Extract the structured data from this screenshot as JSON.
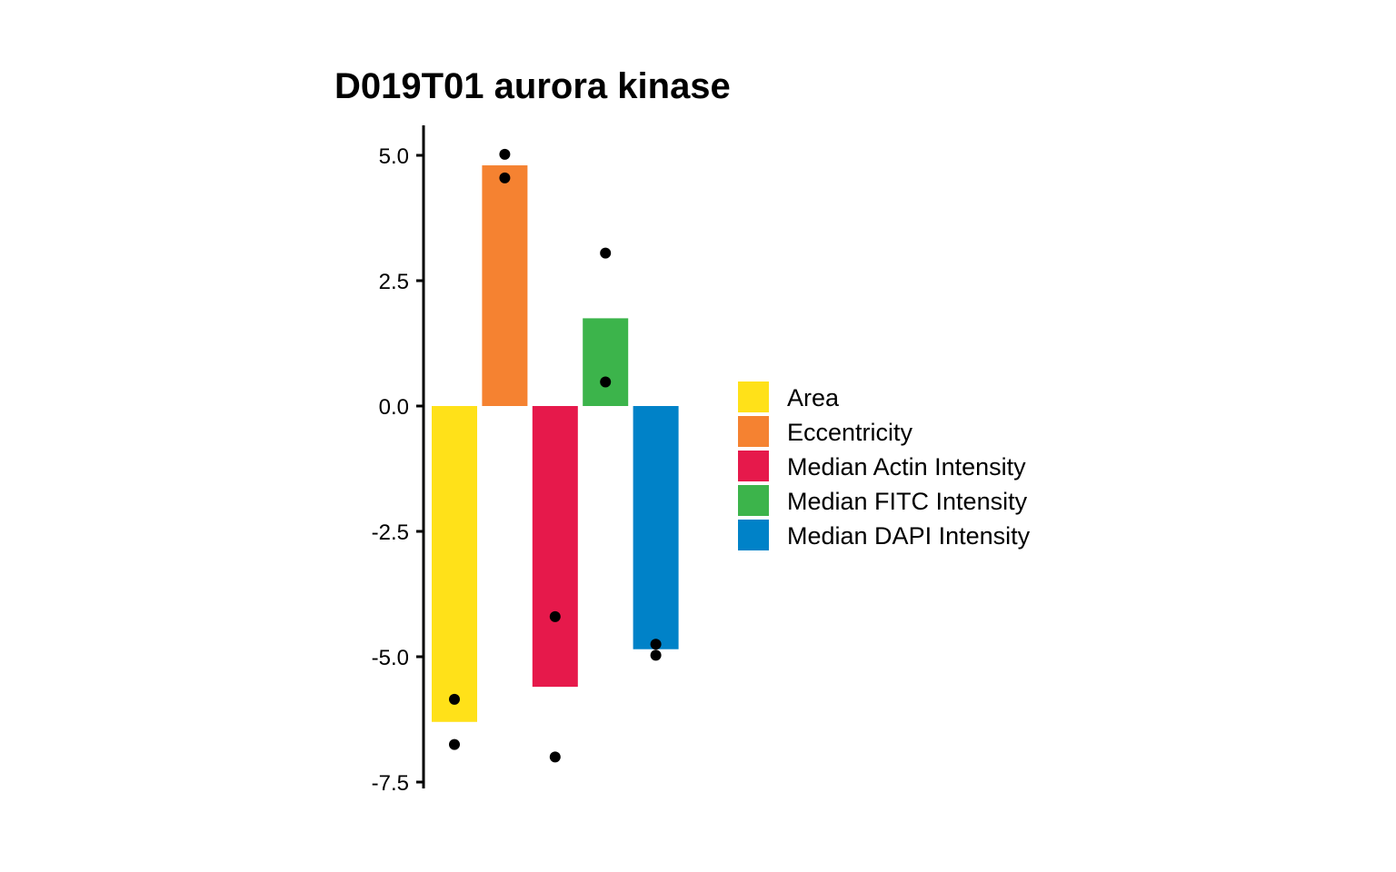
{
  "chart_data": {
    "type": "bar",
    "title": "D019T01 aurora kinase",
    "xlabel": "",
    "ylabel": "",
    "ylim": [
      -7.5,
      5.5
    ],
    "yticks": [
      -7.5,
      -5.0,
      -2.5,
      0.0,
      2.5,
      5.0
    ],
    "ytick_labels": [
      "-7.5",
      "-5.0",
      "-2.5",
      "0.0",
      "2.5",
      "5.0"
    ],
    "grid": false,
    "legend_position": "right",
    "categories": [
      "Area",
      "Eccentricity",
      "Median Actin Intensity",
      "Median FITC Intensity",
      "Median DAPI Intensity"
    ],
    "values": [
      -6.3,
      4.8,
      -5.6,
      1.75,
      -4.85
    ],
    "colors": [
      "#FFE119",
      "#F58231",
      "#E6194B",
      "#3CB44B",
      "#0082C8"
    ],
    "points": [
      [
        -5.85,
        -6.75
      ],
      [
        5.02,
        4.55
      ],
      [
        -4.2,
        -7.0
      ],
      [
        3.05,
        0.48
      ],
      [
        -4.75,
        -4.97
      ]
    ]
  }
}
